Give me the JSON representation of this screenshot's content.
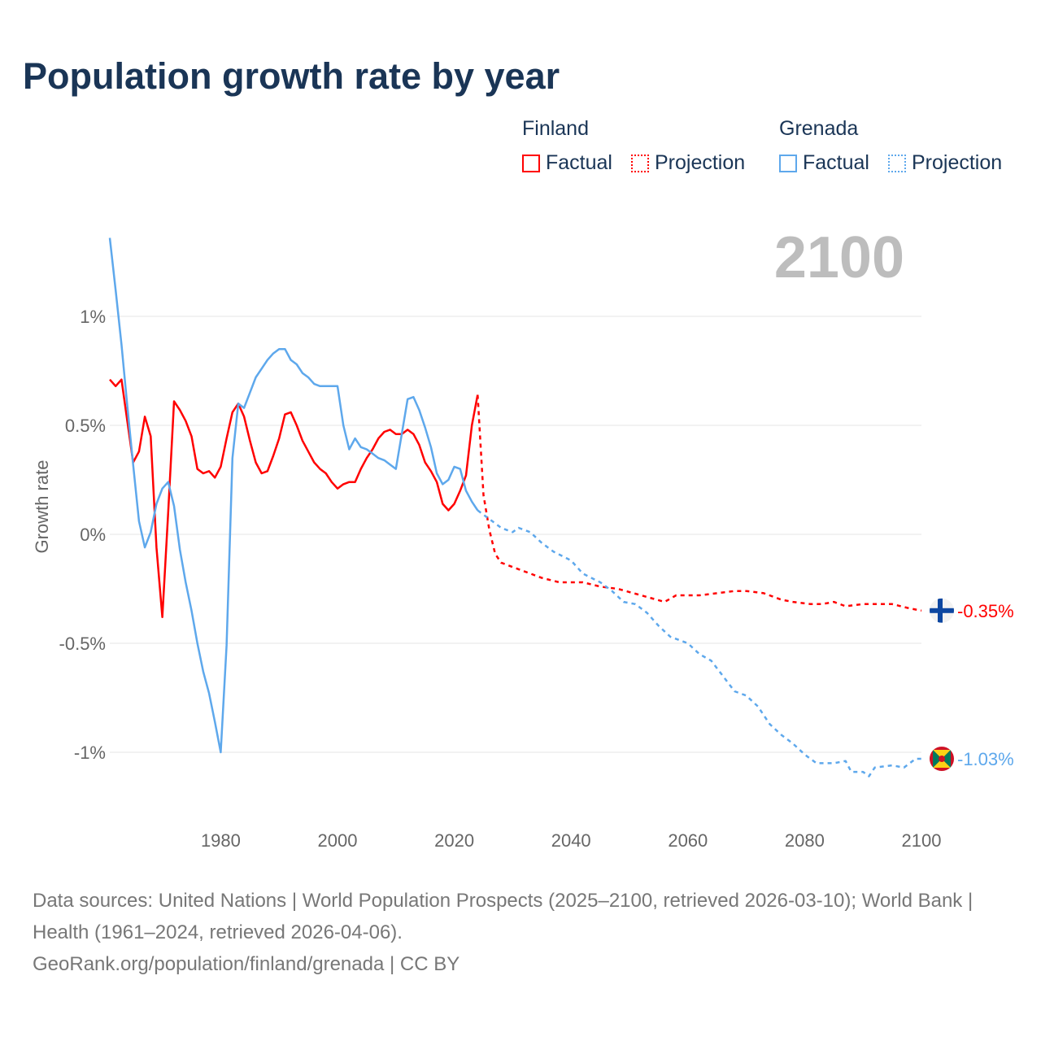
{
  "chart_data": {
    "type": "line",
    "title": "Population growth rate by year",
    "ylabel": "Growth rate",
    "xlabel": "",
    "xlim": [
      1961,
      2100
    ],
    "ylim": [
      -1.2,
      1.4
    ],
    "grid": true,
    "x_ticks": [
      {
        "v": 1980,
        "label": "1980"
      },
      {
        "v": 2000,
        "label": "2000"
      },
      {
        "v": 2020,
        "label": "2020"
      },
      {
        "v": 2040,
        "label": "2040"
      },
      {
        "v": 2060,
        "label": "2060"
      },
      {
        "v": 2080,
        "label": "2080"
      },
      {
        "v": 2100,
        "label": "2100"
      }
    ],
    "y_ticks": [
      {
        "v": 1,
        "label": "1%"
      },
      {
        "v": 0.5,
        "label": "0.5%"
      },
      {
        "v": 0,
        "label": "0%"
      },
      {
        "v": -0.5,
        "label": "-0.5%"
      },
      {
        "v": -1,
        "label": "-1%"
      }
    ],
    "current_year": "2100",
    "legend": {
      "placement": "top-right",
      "groups": [
        {
          "name": "Finland",
          "factual": "Factual",
          "projection": "Projection",
          "color": "#ff0000"
        },
        {
          "name": "Grenada",
          "factual": "Factual",
          "projection": "Projection",
          "color": "#5ea8ec"
        }
      ]
    },
    "series": [
      {
        "name": "Finland Factual",
        "color": "#ff0000",
        "dashed": false,
        "start_year": 1961,
        "values": [
          0.71,
          0.68,
          0.71,
          0.52,
          0.33,
          0.38,
          0.54,
          0.45,
          -0.06,
          -0.38,
          0.1,
          0.61,
          0.57,
          0.52,
          0.45,
          0.3,
          0.28,
          0.29,
          0.26,
          0.31,
          0.44,
          0.56,
          0.6,
          0.54,
          0.43,
          0.33,
          0.28,
          0.29,
          0.36,
          0.44,
          0.55,
          0.56,
          0.5,
          0.43,
          0.38,
          0.33,
          0.3,
          0.28,
          0.24,
          0.21,
          0.23,
          0.24,
          0.24,
          0.3,
          0.35,
          0.39,
          0.44,
          0.47,
          0.48,
          0.46,
          0.46,
          0.48,
          0.46,
          0.41,
          0.33,
          0.29,
          0.24,
          0.14,
          0.11,
          0.14,
          0.2,
          0.27,
          0.5,
          0.64
        ]
      },
      {
        "name": "Finland Projection",
        "color": "#ff0000",
        "dashed": true,
        "points": [
          [
            2024,
            0.64
          ],
          [
            2025,
            0.18
          ],
          [
            2026,
            0.02
          ],
          [
            2027,
            -0.09
          ],
          [
            2028,
            -0.13
          ],
          [
            2030,
            -0.15
          ],
          [
            2033,
            -0.18
          ],
          [
            2035,
            -0.2
          ],
          [
            2038,
            -0.22
          ],
          [
            2042,
            -0.22
          ],
          [
            2045,
            -0.24
          ],
          [
            2048,
            -0.25
          ],
          [
            2052,
            -0.28
          ],
          [
            2056,
            -0.31
          ],
          [
            2058,
            -0.28
          ],
          [
            2062,
            -0.28
          ],
          [
            2065,
            -0.27
          ],
          [
            2068,
            -0.26
          ],
          [
            2070,
            -0.26
          ],
          [
            2073,
            -0.27
          ],
          [
            2076,
            -0.3
          ],
          [
            2078,
            -0.31
          ],
          [
            2081,
            -0.32
          ],
          [
            2083,
            -0.32
          ],
          [
            2085,
            -0.31
          ],
          [
            2087,
            -0.33
          ],
          [
            2090,
            -0.32
          ],
          [
            2092,
            -0.32
          ],
          [
            2095,
            -0.32
          ],
          [
            2098,
            -0.34
          ],
          [
            2100,
            -0.35
          ]
        ]
      },
      {
        "name": "Grenada Factual",
        "color": "#5ea8ec",
        "dashed": false,
        "start_year": 1961,
        "values": [
          1.36,
          1.12,
          0.87,
          0.59,
          0.32,
          0.06,
          -0.06,
          0.01,
          0.14,
          0.21,
          0.24,
          0.13,
          -0.07,
          -0.22,
          -0.35,
          -0.5,
          -0.63,
          -0.73,
          -0.86,
          -1.0,
          -0.51,
          0.35,
          0.6,
          0.58,
          0.65,
          0.72,
          0.76,
          0.8,
          0.83,
          0.85,
          0.85,
          0.8,
          0.78,
          0.74,
          0.72,
          0.69,
          0.68,
          0.68,
          0.68,
          0.68,
          0.5,
          0.39,
          0.44,
          0.4,
          0.39,
          0.37,
          0.35,
          0.34,
          0.32,
          0.3,
          0.46,
          0.62,
          0.63,
          0.57,
          0.49,
          0.4,
          0.28,
          0.23,
          0.25,
          0.31,
          0.3,
          0.2,
          0.15,
          0.11
        ]
      },
      {
        "name": "Grenada Projection",
        "color": "#5ea8ec",
        "dashed": true,
        "points": [
          [
            2024,
            0.11
          ],
          [
            2026,
            0.07
          ],
          [
            2028,
            0.03
          ],
          [
            2030,
            0.01
          ],
          [
            2031,
            0.03
          ],
          [
            2033,
            0.01
          ],
          [
            2035,
            -0.04
          ],
          [
            2037,
            -0.08
          ],
          [
            2040,
            -0.12
          ],
          [
            2042,
            -0.18
          ],
          [
            2045,
            -0.22
          ],
          [
            2047,
            -0.26
          ],
          [
            2049,
            -0.31
          ],
          [
            2051,
            -0.32
          ],
          [
            2053,
            -0.36
          ],
          [
            2055,
            -0.42
          ],
          [
            2057,
            -0.47
          ],
          [
            2060,
            -0.5
          ],
          [
            2062,
            -0.55
          ],
          [
            2064,
            -0.58
          ],
          [
            2066,
            -0.65
          ],
          [
            2068,
            -0.72
          ],
          [
            2070,
            -0.74
          ],
          [
            2072,
            -0.79
          ],
          [
            2074,
            -0.87
          ],
          [
            2076,
            -0.92
          ],
          [
            2078,
            -0.96
          ],
          [
            2080,
            -1.01
          ],
          [
            2082,
            -1.05
          ],
          [
            2085,
            -1.05
          ],
          [
            2087,
            -1.04
          ],
          [
            2088,
            -1.09
          ],
          [
            2090,
            -1.09
          ],
          [
            2091,
            -1.11
          ],
          [
            2092,
            -1.07
          ],
          [
            2095,
            -1.06
          ],
          [
            2097,
            -1.07
          ],
          [
            2099,
            -1.03
          ],
          [
            2100,
            -1.03
          ]
        ]
      }
    ],
    "end_labels": [
      {
        "country": "Finland",
        "value": -0.35,
        "label": "-0.35%",
        "color": "#ff0000",
        "icon": "finland-flag-icon"
      },
      {
        "country": "Grenada",
        "value": -1.03,
        "label": "-1.03%",
        "color": "#5ea8ec",
        "icon": "grenada-flag-icon"
      }
    ]
  },
  "footer": {
    "sources": "Data sources: United Nations | World Population Prospects (2025–2100, retrieved 2026-03-10); World Bank | Health (1961–2024, retrieved 2026-04-06).",
    "credit": "GeoRank.org/population/finland/grenada | CC BY"
  }
}
